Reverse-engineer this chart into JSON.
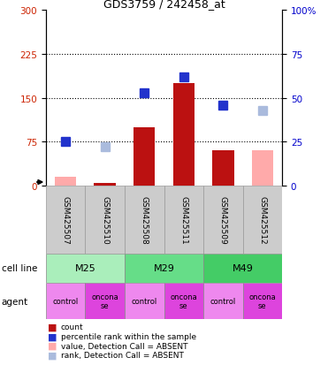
{
  "title": "GDS3759 / 242458_at",
  "samples": [
    "GSM425507",
    "GSM425510",
    "GSM425508",
    "GSM425511",
    "GSM425509",
    "GSM425512"
  ],
  "cell_lines": [
    [
      "M25",
      2
    ],
    [
      "M29",
      2
    ],
    [
      "M49",
      2
    ]
  ],
  "agents": [
    "control",
    "onconase",
    "control",
    "onconase",
    "control",
    "onconase"
  ],
  "bar_values": [
    15,
    5,
    100,
    175,
    60,
    60
  ],
  "bar_absent": [
    true,
    false,
    false,
    false,
    false,
    true
  ],
  "rank_values": [
    25,
    22,
    53,
    62,
    46,
    43
  ],
  "rank_absent": [
    false,
    true,
    false,
    false,
    false,
    true
  ],
  "ylim_left": [
    0,
    300
  ],
  "ylim_right": [
    0,
    100
  ],
  "yticks_left": [
    0,
    75,
    150,
    225,
    300
  ],
  "yticks_right": [
    0,
    25,
    50,
    75,
    100
  ],
  "bar_color_normal": "#bb1111",
  "bar_color_absent": "#ffaaaa",
  "rank_color_normal": "#2233cc",
  "rank_color_absent": "#aabbdd",
  "cell_line_colors": [
    "#aaeebb",
    "#66dd88",
    "#44cc66"
  ],
  "agent_color_control": "#ee88ee",
  "agent_color_onconase": "#dd44dd",
  "bar_width": 0.55,
  "rank_marker_size": 7,
  "grid_yticks": [
    75,
    150,
    225
  ],
  "legend_items": [
    {
      "color": "#bb1111",
      "label": "count"
    },
    {
      "color": "#2233cc",
      "label": "percentile rank within the sample"
    },
    {
      "color": "#ffaaaa",
      "label": "value, Detection Call = ABSENT"
    },
    {
      "color": "#aabbdd",
      "label": "rank, Detection Call = ABSENT"
    }
  ]
}
